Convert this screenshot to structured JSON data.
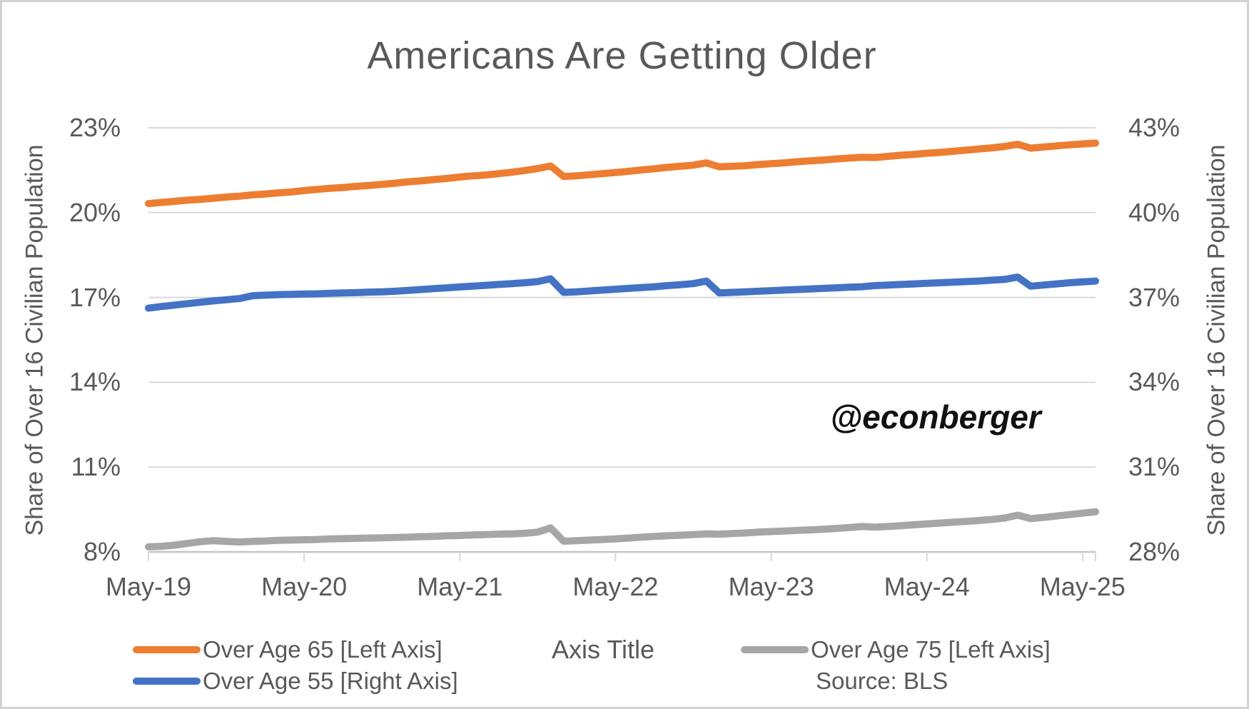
{
  "frame": {
    "background": "#ffffff",
    "border_color": "#d2d2d2"
  },
  "chart_data": {
    "type": "line",
    "title": "Americans Are Getting Older",
    "watermark": "@econberger",
    "source_note": "Source: BLS",
    "text_color": "#595959",
    "grid_color": "#d9d9d9",
    "axis_line_color": "#c4c4c4",
    "grid_on": true,
    "legend_position": "bottom",
    "x_axis": {
      "title_placeholder": "Axis Title",
      "tick_labels": [
        "May-19",
        "May-20",
        "May-21",
        "May-22",
        "May-23",
        "May-24",
        "May-25"
      ],
      "frequency": "monthly",
      "start": "May-2019",
      "end": "Jun-2025"
    },
    "left_axis": {
      "title": "Share of Over 16 Civilian Population",
      "min": 8,
      "max": 23,
      "tick_values": [
        23,
        20,
        17,
        14,
        11,
        8
      ],
      "tick_labels": [
        "23%",
        "20%",
        "17%",
        "14%",
        "11%",
        "8%"
      ]
    },
    "right_axis": {
      "title": "Share of Over 16 Civilian Population",
      "min": 28,
      "max": 43,
      "tick_values": [
        43,
        40,
        37,
        34,
        31,
        28
      ],
      "tick_labels": [
        "43%",
        "40%",
        "37%",
        "34%",
        "31%",
        "28%"
      ]
    },
    "series": [
      {
        "name": "Over Age 65 [Left Axis]",
        "axis": "left",
        "color": "#ED7D31",
        "values": [
          20.32,
          20.36,
          20.4,
          20.44,
          20.47,
          20.51,
          20.55,
          20.58,
          20.63,
          20.66,
          20.7,
          20.73,
          20.78,
          20.82,
          20.86,
          20.89,
          20.93,
          20.96,
          21.0,
          21.04,
          21.09,
          21.12,
          21.17,
          21.21,
          21.26,
          21.3,
          21.33,
          21.38,
          21.43,
          21.49,
          21.56,
          21.65,
          21.28,
          21.3,
          21.34,
          21.38,
          21.42,
          21.46,
          21.51,
          21.55,
          21.6,
          21.64,
          21.68,
          21.76,
          21.62,
          21.64,
          21.66,
          21.7,
          21.73,
          21.76,
          21.8,
          21.83,
          21.86,
          21.9,
          21.93,
          21.96,
          21.95,
          21.99,
          22.03,
          22.06,
          22.1,
          22.13,
          22.17,
          22.21,
          22.25,
          22.29,
          22.34,
          22.42,
          22.28,
          22.32,
          22.36,
          22.4,
          22.43,
          22.46
        ]
      },
      {
        "name": "Over Age 55 [Right Axis]",
        "axis": "right",
        "color": "#4472C4",
        "values": [
          36.62,
          36.68,
          36.73,
          36.78,
          36.83,
          36.88,
          36.92,
          36.96,
          37.06,
          37.08,
          37.1,
          37.11,
          37.12,
          37.13,
          37.15,
          37.16,
          37.17,
          37.19,
          37.2,
          37.22,
          37.25,
          37.28,
          37.31,
          37.34,
          37.37,
          37.4,
          37.43,
          37.46,
          37.49,
          37.52,
          37.56,
          37.66,
          37.18,
          37.2,
          37.23,
          37.26,
          37.29,
          37.32,
          37.35,
          37.38,
          37.42,
          37.45,
          37.49,
          37.58,
          37.16,
          37.18,
          37.2,
          37.22,
          37.24,
          37.26,
          37.28,
          37.3,
          37.32,
          37.34,
          37.36,
          37.38,
          37.42,
          37.44,
          37.46,
          37.48,
          37.5,
          37.52,
          37.54,
          37.56,
          37.58,
          37.61,
          37.64,
          37.72,
          37.4,
          37.44,
          37.48,
          37.52,
          37.55,
          37.58
        ]
      },
      {
        "name": "Over Age 75 [Left Axis]",
        "axis": "left",
        "color": "#A6A6A6",
        "values": [
          8.18,
          8.2,
          8.24,
          8.3,
          8.36,
          8.4,
          8.37,
          8.35,
          8.37,
          8.39,
          8.41,
          8.42,
          8.43,
          8.44,
          8.46,
          8.47,
          8.48,
          8.49,
          8.5,
          8.51,
          8.52,
          8.54,
          8.55,
          8.57,
          8.58,
          8.6,
          8.61,
          8.63,
          8.64,
          8.66,
          8.7,
          8.85,
          8.38,
          8.4,
          8.42,
          8.44,
          8.46,
          8.49,
          8.52,
          8.55,
          8.57,
          8.59,
          8.61,
          8.64,
          8.63,
          8.65,
          8.67,
          8.7,
          8.72,
          8.74,
          8.76,
          8.78,
          8.8,
          8.83,
          8.86,
          8.9,
          8.88,
          8.9,
          8.93,
          8.96,
          8.99,
          9.02,
          9.05,
          9.08,
          9.11,
          9.15,
          9.2,
          9.3,
          9.18,
          9.22,
          9.27,
          9.32,
          9.37,
          9.42
        ]
      }
    ]
  }
}
